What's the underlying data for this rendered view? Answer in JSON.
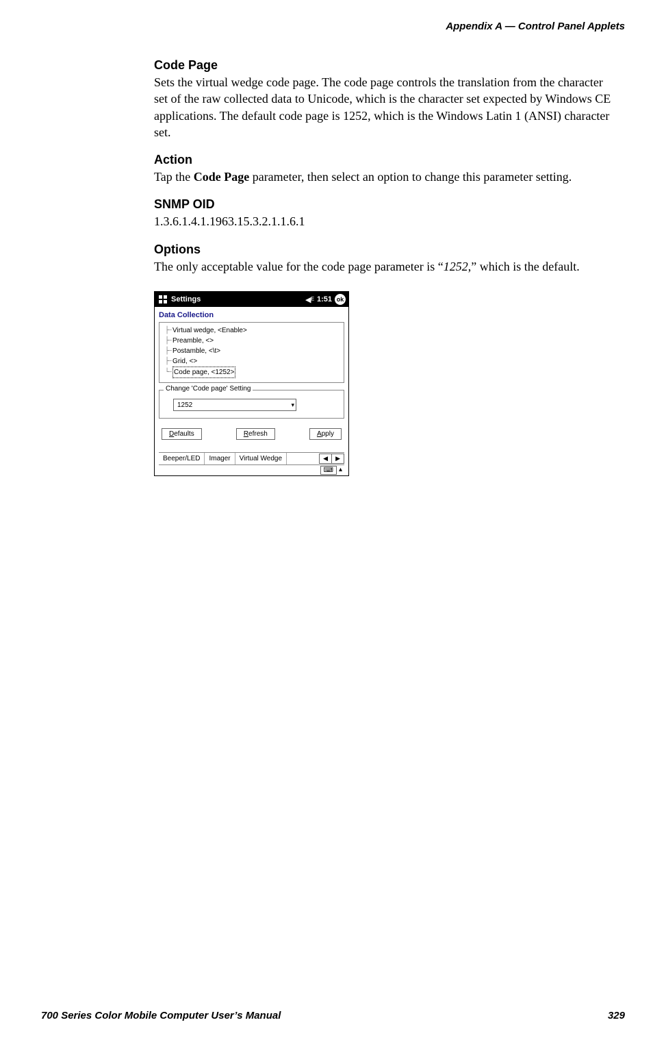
{
  "header": {
    "right": "Appendix A   —   Control Panel Applets"
  },
  "sections": {
    "codepage": {
      "heading": "Code Page",
      "body": "Sets the virtual wedge code page. The code page controls the translation from the character set of the raw collected data to Unicode, which is the character set expected by Windows CE applications. The default code page is 1252, which is the Windows Latin 1 (ANSI) character set."
    },
    "action": {
      "heading": "Action",
      "body_pre": "Tap the ",
      "body_bold": "Code Page",
      "body_post": " parameter, then select an option to change this parameter setting."
    },
    "snmp": {
      "heading": "SNMP OID",
      "body": "1.3.6.1.4.1.1963.15.3.2.1.1.6.1"
    },
    "options": {
      "heading": "Options",
      "body_pre": "The only acceptable value for the code page parameter is “",
      "body_italic": "1252",
      "body_post": ",” which is the default."
    }
  },
  "footer": {
    "title": "700 Series Color Mobile Computer User’s Manual",
    "page": "329"
  },
  "screenshot": {
    "titlebar": {
      "title": "Settings",
      "time": "1:51",
      "ok": "ok"
    },
    "page_title": "Data Collection",
    "tree": [
      "Virtual wedge, <Enable>",
      "Preamble, <>",
      "Postamble, <\\t>",
      "Grid, <>",
      "Code page, <1252>"
    ],
    "tree_selected_index": 4,
    "fieldset_legend": "Change 'Code page' Setting",
    "dropdown_value": "1252",
    "buttons": {
      "defaults": {
        "ul": "D",
        "rest": "efaults"
      },
      "refresh": {
        "ul": "R",
        "rest": "efresh"
      },
      "apply": {
        "ul": "A",
        "rest": "pply"
      }
    },
    "tabs": [
      "Beeper/LED",
      "Imager",
      "Virtual Wedge"
    ]
  }
}
